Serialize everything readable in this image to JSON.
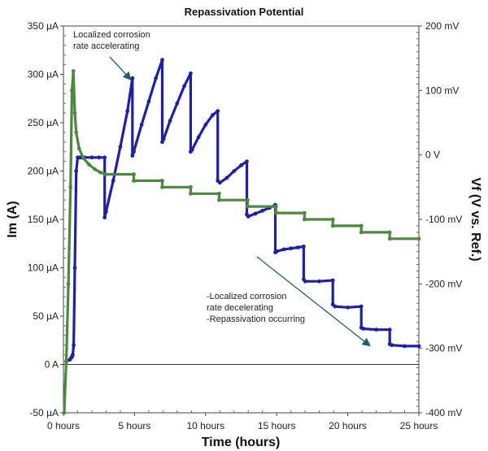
{
  "chart_data": {
    "type": "line",
    "title": "Repassivation Potential",
    "xlabel": "Time (hours)",
    "ylabel_left": "Im (A)",
    "ylabel_right": "Vf (V vs. Ref.)",
    "xlim": [
      0,
      25
    ],
    "ylim_left": [
      -50,
      350
    ],
    "ylim_right": [
      -400,
      200
    ],
    "x_ticks": [
      0,
      5,
      10,
      15,
      20,
      25
    ],
    "x_tick_labels": [
      "0 hours",
      "5 hours",
      "10 hours",
      "15 hours",
      "20 hours",
      "25 hours"
    ],
    "y_left_ticks": [
      -50,
      0,
      50,
      100,
      150,
      200,
      250,
      300,
      350
    ],
    "y_left_tick_labels": [
      "-50 µA",
      "0 A",
      "50 µA",
      "100 µA",
      "150 µA",
      "200 µA",
      "250 µA",
      "300 µA",
      "350 µA"
    ],
    "y_right_ticks": [
      -400,
      -300,
      -200,
      -100,
      0,
      100,
      200
    ],
    "y_right_tick_labels": [
      "-400 mV",
      "-300 mV",
      "-200 mV",
      "-100 mV",
      "0 V",
      "100 mV",
      "200 mV"
    ],
    "grid": false,
    "series": [
      {
        "axis": "left",
        "color": "#1f1fa8",
        "x": [
          0.2,
          0.45,
          0.55,
          0.6,
          0.65,
          0.72,
          0.8,
          0.9,
          1.0,
          1.1,
          1.2,
          1.3,
          1.5,
          2.0,
          2.5,
          2.9,
          2.9,
          3.0,
          3.5,
          4.0,
          4.5,
          4.85,
          4.85,
          4.95,
          5.5,
          6.0,
          6.5,
          6.95,
          6.95,
          7.05,
          7.5,
          8.0,
          8.5,
          8.95,
          8.95,
          9.05,
          9.5,
          10.0,
          10.5,
          10.85,
          10.85,
          11.0,
          11.5,
          12.0,
          12.5,
          12.9,
          12.9,
          13.0,
          13.5,
          14.0,
          14.5,
          14.9,
          14.9,
          15.0,
          15.5,
          16.0,
          16.5,
          16.9,
          16.9,
          17.0,
          18.0,
          18.95,
          18.95,
          19.1,
          20.0,
          20.95,
          20.95,
          21.1,
          22.0,
          22.95,
          22.95,
          23.1,
          24.0,
          25.0
        ],
        "y": [
          3,
          5,
          7,
          8,
          10,
          20,
          100,
          200,
          214,
          214,
          214,
          214,
          214,
          214,
          214,
          214,
          152,
          158,
          190,
          225,
          262,
          296,
          216,
          220,
          248,
          272,
          296,
          315,
          230,
          233,
          252,
          270,
          288,
          301,
          220,
          222,
          235,
          248,
          258,
          262,
          190,
          188,
          193,
          200,
          206,
          210,
          155,
          153,
          156,
          159,
          162,
          165,
          116,
          117,
          119,
          120,
          121,
          122,
          88,
          86,
          86,
          87,
          62,
          60,
          59,
          60,
          38,
          37,
          36,
          36,
          21,
          20,
          19,
          19
        ]
      },
      {
        "axis": "right",
        "color": "#4a8a3c",
        "x": [
          0.05,
          0.2,
          0.35,
          0.5,
          0.6,
          0.7,
          0.8,
          0.9,
          1.1,
          1.4,
          1.8,
          2.2,
          2.6,
          2.95,
          2.95,
          4.95,
          4.95,
          6.95,
          6.95,
          8.95,
          8.95,
          10.95,
          10.95,
          12.95,
          12.95,
          14.95,
          14.95,
          16.95,
          16.95,
          18.95,
          18.95,
          20.95,
          20.95,
          22.95,
          22.95,
          25.0
        ],
        "y": [
          -400,
          -320,
          -200,
          -50,
          100,
          130,
          65,
          35,
          10,
          -5,
          -15,
          -22,
          -27,
          -30,
          -30,
          -30,
          -40,
          -40,
          -50,
          -50,
          -60,
          -60,
          -70,
          -70,
          -80,
          -80,
          -90,
          -90,
          -100,
          -100,
          -110,
          -110,
          -120,
          -120,
          -130,
          -130
        ]
      }
    ],
    "annotations": [
      {
        "lines": [
          "Localized corrosion",
          "rate accelerating"
        ],
        "arrow_to": [
          4.8,
          297
        ]
      },
      {
        "lines": [
          "-Localized corrosion",
          "  rate decelerating",
          "-Repassivation occurring"
        ],
        "arrow_to": [
          21.5,
          20
        ]
      }
    ]
  }
}
